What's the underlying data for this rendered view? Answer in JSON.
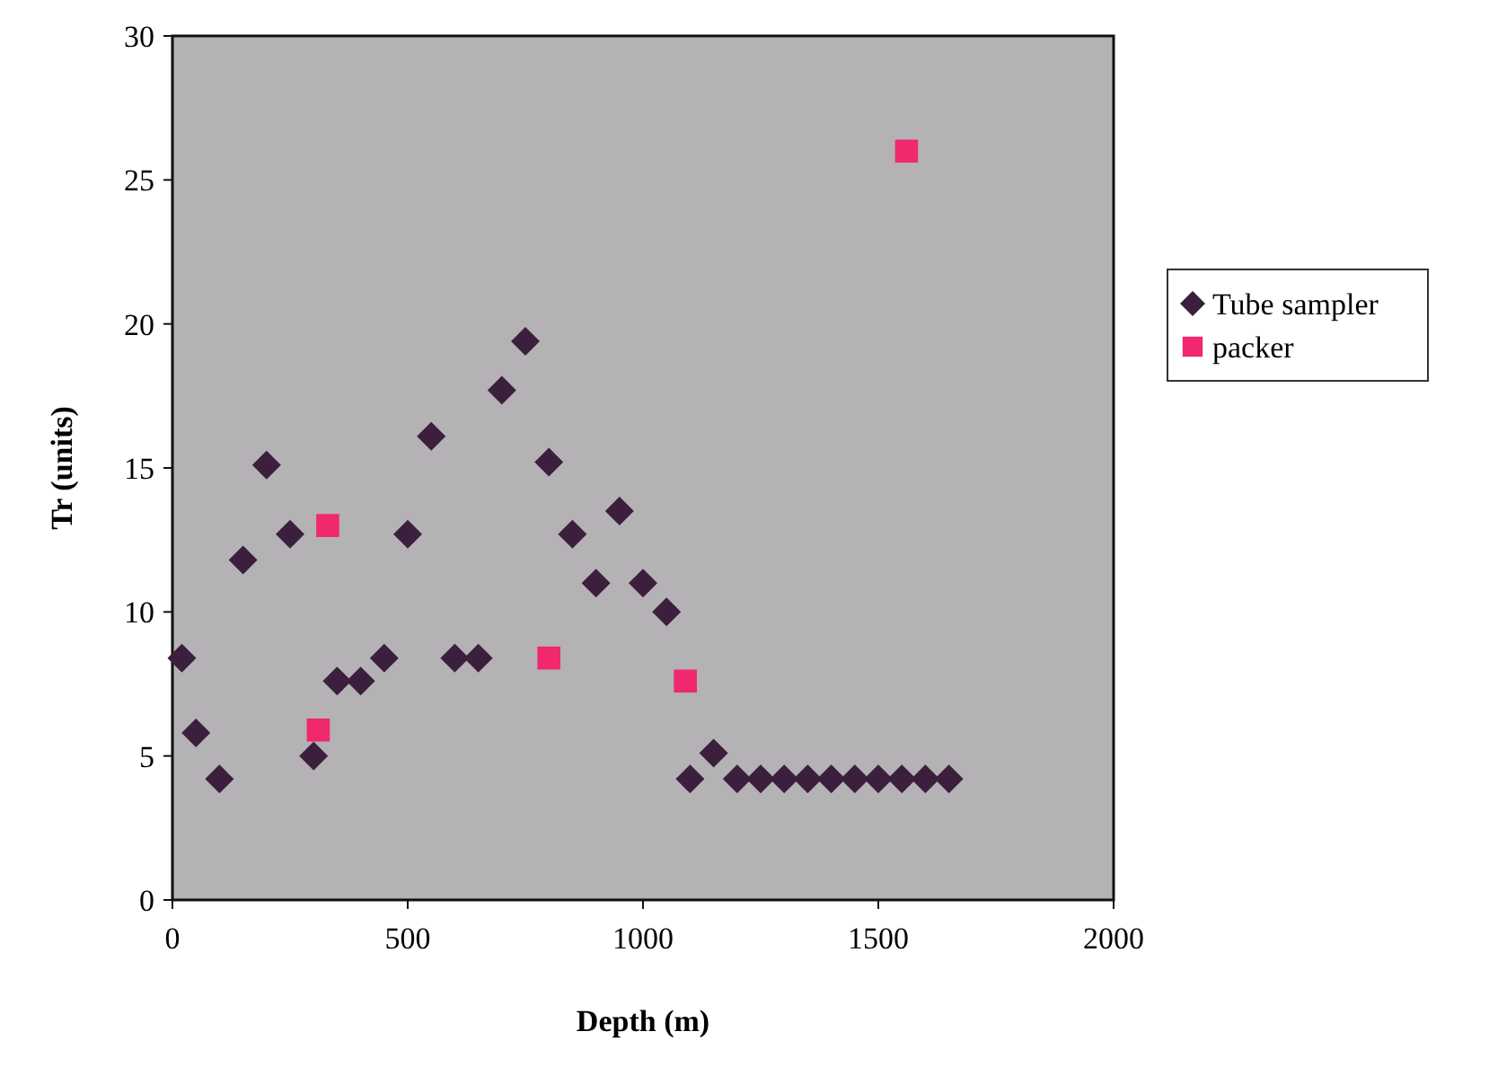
{
  "chart_data": {
    "type": "scatter",
    "xlabel": "Depth (m)",
    "ylabel": "Tr (units)",
    "xlim": [
      0,
      2000
    ],
    "xticks": [
      0,
      500,
      1000,
      1500,
      2000
    ],
    "ylim": [
      0,
      30
    ],
    "yticks": [
      0,
      5,
      10,
      15,
      20,
      25,
      30
    ],
    "grid": false,
    "legend": "right",
    "series": [
      {
        "name": "Tube sampler",
        "color": "#3b1f3d",
        "marker": "diamond",
        "x": [
          20,
          50,
          100,
          150,
          200,
          250,
          300,
          350,
          400,
          450,
          500,
          550,
          600,
          650,
          700,
          750,
          800,
          850,
          900,
          950,
          1000,
          1050,
          1100,
          1150,
          1200,
          1250,
          1300,
          1350,
          1400,
          1450,
          1500,
          1550,
          1600,
          1650
        ],
        "values": [
          8.4,
          5.8,
          4.2,
          11.8,
          15.1,
          12.7,
          5.0,
          7.6,
          7.6,
          8.4,
          12.7,
          16.1,
          8.4,
          8.4,
          17.7,
          19.4,
          15.2,
          12.7,
          11.0,
          13.5,
          11.0,
          10.0,
          4.2,
          5.1,
          4.2,
          4.2,
          4.2,
          4.2,
          4.2,
          4.2,
          4.2,
          4.2,
          4.2,
          4.2
        ]
      },
      {
        "name": "packer",
        "color": "#f0286e",
        "marker": "square",
        "x": [
          310,
          330,
          800,
          1090,
          1560
        ],
        "values": [
          5.9,
          13.0,
          8.4,
          7.6,
          26.0
        ]
      }
    ]
  }
}
